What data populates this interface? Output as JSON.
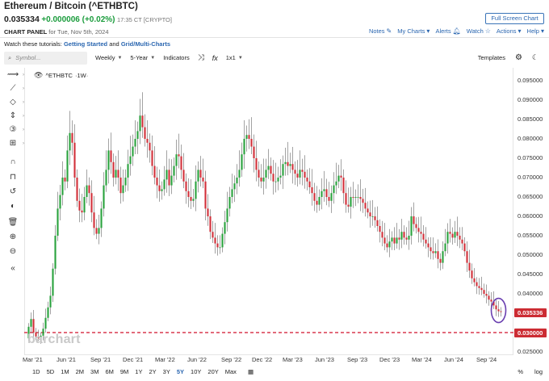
{
  "header": {
    "title": "Ethereum / Bitcoin (^ETHBTC)",
    "price": "0.035334",
    "change": "+0.000006 (+0.02%)",
    "meta": "17:35 CT [CRYPTO]",
    "fullscreen_label": "Full Screen Chart"
  },
  "panel": {
    "label": "CHART PANEL",
    "date": "for Tue, Nov 5th, 2024",
    "links": {
      "notes": "Notes",
      "mycharts": "My Charts",
      "alerts": "Alerts",
      "watch": "Watch",
      "actions": "Actions",
      "help": "Help"
    }
  },
  "tutorial": {
    "prefix": "Watch these tutorials:",
    "link1": "Getting Started",
    "middle": "and",
    "link2": "Grid/Multi-Charts"
  },
  "toolbar": {
    "search_placeholder": "Symbol...",
    "interval": "Weekly",
    "range": "5-Year",
    "indicators": "Indicators",
    "layout": "1x1",
    "templates": "Templates"
  },
  "legend": {
    "symbol": "^ETHBTC",
    "period": "·1W·"
  },
  "watermark": "barchart",
  "y_ticks": [
    "0.095000",
    "0.090000",
    "0.085000",
    "0.080000",
    "0.075000",
    "0.070000",
    "0.065000",
    "0.060000",
    "0.055000",
    "0.050000",
    "0.045000",
    "0.040000",
    "0.025000"
  ],
  "x_ticks": [
    "Mar '21",
    "Jun '21",
    "Sep '21",
    "Dec '21",
    "Mar '22",
    "Jun '22",
    "Sep '22",
    "Dec '22",
    "Mar '23",
    "Jun '23",
    "Sep '23",
    "Dec '23",
    "Mar '24",
    "Jun '24",
    "Sep '24"
  ],
  "price_tags": {
    "last": "0.035336",
    "line": "0.030000"
  },
  "timeframes": [
    "1D",
    "5D",
    "1M",
    "2M",
    "3M",
    "6M",
    "9M",
    "1Y",
    "2Y",
    "3Y",
    "5Y",
    "10Y",
    "20Y",
    "Max"
  ],
  "timeframe_selected": "5Y",
  "scale_options": [
    "%",
    "log"
  ],
  "colors": {
    "up": "#29a23d",
    "down": "#d2303a",
    "line": "#d0112b",
    "highlight": "#6a3fb0",
    "link": "#2a66b0"
  },
  "chart_data": {
    "type": "candlestick",
    "interval": "Weekly",
    "ylim": [
      0.025,
      0.0975
    ],
    "horizontal_line": 0.03,
    "highlight": "last candles circled",
    "closes": [
      0.0315,
      0.0335,
      0.03,
      0.029,
      0.0285,
      0.0292,
      0.031,
      0.0338,
      0.0365,
      0.0395,
      0.0465,
      0.055,
      0.062,
      0.0655,
      0.07,
      0.069,
      0.077,
      0.0815,
      0.079,
      0.07,
      0.064,
      0.0615,
      0.061,
      0.065,
      0.068,
      0.066,
      0.061,
      0.057,
      0.0555,
      0.057,
      0.062,
      0.068,
      0.072,
      0.077,
      0.074,
      0.07,
      0.072,
      0.07,
      0.066,
      0.068,
      0.07,
      0.0735,
      0.0755,
      0.078,
      0.08,
      0.082,
      0.086,
      0.083,
      0.08,
      0.079,
      0.077,
      0.073,
      0.07,
      0.068,
      0.0665,
      0.067,
      0.0695,
      0.072,
      0.068,
      0.0705,
      0.073,
      0.076,
      0.0755,
      0.072,
      0.069,
      0.0665,
      0.065,
      0.064,
      0.0645,
      0.069,
      0.072,
      0.07,
      0.069,
      0.062,
      0.06,
      0.056,
      0.0545,
      0.053,
      0.052,
      0.052,
      0.0555,
      0.0585,
      0.062,
      0.065,
      0.067,
      0.0685,
      0.07,
      0.072,
      0.076,
      0.08,
      0.081,
      0.08,
      0.078,
      0.075,
      0.072,
      0.07,
      0.069,
      0.07,
      0.072,
      0.073,
      0.071,
      0.069,
      0.069,
      0.07,
      0.0705,
      0.0735,
      0.074,
      0.073,
      0.0735,
      0.072,
      0.071,
      0.07,
      0.072,
      0.0715,
      0.07,
      0.069,
      0.0675,
      0.066,
      0.064,
      0.063,
      0.065,
      0.0665,
      0.067,
      0.065,
      0.064,
      0.066,
      0.068,
      0.069,
      0.0705,
      0.07,
      0.066,
      0.063,
      0.0625,
      0.065,
      0.0648,
      0.065,
      0.065,
      0.0645,
      0.0635,
      0.062,
      0.061,
      0.06,
      0.06,
      0.059,
      0.0575,
      0.056,
      0.0545,
      0.053,
      0.052,
      0.0535,
      0.0545,
      0.053,
      0.0545,
      0.054,
      0.056,
      0.0545,
      0.054,
      0.055,
      0.06,
      0.058,
      0.057,
      0.056,
      0.0555,
      0.054,
      0.053,
      0.052,
      0.051,
      0.0505,
      0.051,
      0.049,
      0.048,
      0.051,
      0.053,
      0.056,
      0.0555,
      0.0545,
      0.056,
      0.055,
      0.054,
      0.053,
      0.051,
      0.048,
      0.046,
      0.044,
      0.043,
      0.042,
      0.0415,
      0.041,
      0.04,
      0.0395,
      0.0385,
      0.038,
      0.037,
      0.036,
      0.0355,
      0.0353
    ]
  }
}
